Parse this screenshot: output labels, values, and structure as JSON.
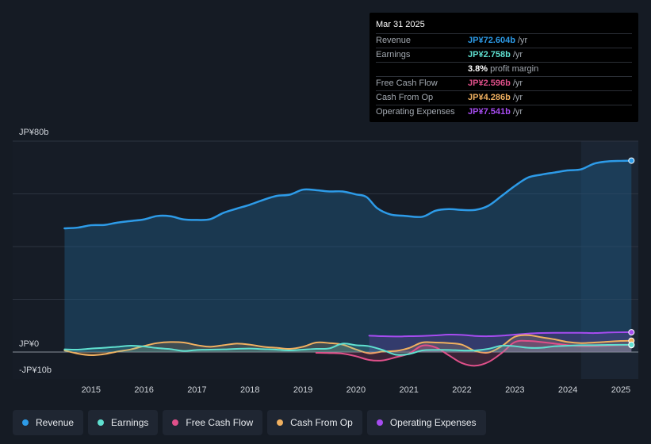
{
  "tooltip": {
    "date": "Mar 31 2025",
    "rows": [
      {
        "label": "Revenue",
        "value": "JP¥72.604b",
        "unit": "/yr",
        "color": "#2d9be8"
      },
      {
        "label": "Earnings",
        "value": "JP¥2.758b",
        "unit": "/yr",
        "color": "#5fe0d0"
      },
      {
        "label": "",
        "value": "3.8%",
        "unit": "profit margin",
        "color": "#ffffff"
      },
      {
        "label": "Free Cash Flow",
        "value": "JP¥2.596b",
        "unit": "/yr",
        "color": "#e0508a"
      },
      {
        "label": "Cash From Op",
        "value": "JP¥4.286b",
        "unit": "/yr",
        "color": "#f0b060"
      },
      {
        "label": "Operating Expenses",
        "value": "JP¥7.541b",
        "unit": "/yr",
        "color": "#a64cf0"
      }
    ]
  },
  "legend": [
    {
      "label": "Revenue",
      "color": "#2d9be8"
    },
    {
      "label": "Earnings",
      "color": "#5fe0d0"
    },
    {
      "label": "Free Cash Flow",
      "color": "#e0508a"
    },
    {
      "label": "Cash From Op",
      "color": "#f0b060"
    },
    {
      "label": "Operating Expenses",
      "color": "#a64cf0"
    }
  ],
  "chart_data": {
    "type": "line",
    "title": "",
    "xlabel": "",
    "ylabel": "",
    "ylim": [
      -10,
      80
    ],
    "y_tick_labels": [
      {
        "value": 80,
        "label": "JP¥80b"
      },
      {
        "value": 0,
        "label": "JP¥0"
      },
      {
        "value": -10,
        "label": "-JP¥10b"
      }
    ],
    "x_tick_labels": [
      {
        "value": 2015,
        "label": "2015"
      },
      {
        "value": 2016,
        "label": "2016"
      },
      {
        "value": 2017,
        "label": "2017"
      },
      {
        "value": 2018,
        "label": "2018"
      },
      {
        "value": 2019,
        "label": "2019"
      },
      {
        "value": 2020,
        "label": "2020"
      },
      {
        "value": 2021,
        "label": "2021"
      },
      {
        "value": 2022,
        "label": "2022"
      },
      {
        "value": 2023,
        "label": "2023"
      },
      {
        "value": 2024,
        "label": "2024"
      },
      {
        "value": 2025,
        "label": "2025"
      }
    ],
    "xlim": [
      2014.0,
      2025.3
    ],
    "forecast_start": 2024.25,
    "series": [
      {
        "name": "Revenue",
        "color": "#2d9be8",
        "fill": true,
        "points": [
          [
            2014.5,
            46.9
          ],
          [
            2014.75,
            47.2
          ],
          [
            2015.0,
            48.1
          ],
          [
            2015.25,
            48.2
          ],
          [
            2015.5,
            49.1
          ],
          [
            2015.75,
            49.7
          ],
          [
            2016.0,
            50.3
          ],
          [
            2016.25,
            51.6
          ],
          [
            2016.5,
            51.5
          ],
          [
            2016.75,
            50.3
          ],
          [
            2017.0,
            50.1
          ],
          [
            2017.25,
            50.4
          ],
          [
            2017.5,
            52.8
          ],
          [
            2017.75,
            54.4
          ],
          [
            2018.0,
            55.9
          ],
          [
            2018.25,
            57.7
          ],
          [
            2018.5,
            59.2
          ],
          [
            2018.75,
            59.7
          ],
          [
            2019.0,
            61.6
          ],
          [
            2019.25,
            61.4
          ],
          [
            2019.5,
            60.9
          ],
          [
            2019.75,
            60.9
          ],
          [
            2020.0,
            59.8
          ],
          [
            2020.2,
            58.8
          ],
          [
            2020.4,
            54.6
          ],
          [
            2020.65,
            52.2
          ],
          [
            2020.9,
            51.7
          ],
          [
            2021.25,
            51.3
          ],
          [
            2021.5,
            53.6
          ],
          [
            2021.75,
            54.2
          ],
          [
            2022.0,
            53.9
          ],
          [
            2022.25,
            53.9
          ],
          [
            2022.5,
            55.5
          ],
          [
            2022.75,
            59.2
          ],
          [
            2023.0,
            63.0
          ],
          [
            2023.25,
            66.2
          ],
          [
            2023.5,
            67.3
          ],
          [
            2023.75,
            68.1
          ],
          [
            2024.0,
            68.9
          ],
          [
            2024.25,
            69.3
          ],
          [
            2024.5,
            71.5
          ],
          [
            2024.75,
            72.3
          ],
          [
            2025.0,
            72.5
          ],
          [
            2025.2,
            72.6
          ]
        ]
      },
      {
        "name": "Operating Expenses",
        "color": "#a64cf0",
        "fill": true,
        "points": [
          [
            2020.25,
            6.2
          ],
          [
            2020.5,
            6.0
          ],
          [
            2020.75,
            5.9
          ],
          [
            2021.0,
            6.0
          ],
          [
            2021.25,
            6.1
          ],
          [
            2021.5,
            6.3
          ],
          [
            2021.75,
            6.6
          ],
          [
            2022.0,
            6.5
          ],
          [
            2022.25,
            6.1
          ],
          [
            2022.5,
            6.0
          ],
          [
            2022.75,
            6.2
          ],
          [
            2023.0,
            6.6
          ],
          [
            2023.25,
            7.0
          ],
          [
            2023.5,
            7.2
          ],
          [
            2023.75,
            7.3
          ],
          [
            2024.0,
            7.3
          ],
          [
            2024.25,
            7.3
          ],
          [
            2024.5,
            7.2
          ],
          [
            2024.75,
            7.4
          ],
          [
            2025.0,
            7.5
          ],
          [
            2025.2,
            7.5
          ]
        ]
      },
      {
        "name": "Cash From Op",
        "color": "#f0b060",
        "fill": true,
        "points": [
          [
            2014.5,
            0.6
          ],
          [
            2014.75,
            -0.6
          ],
          [
            2015.0,
            -1.2
          ],
          [
            2015.25,
            -0.8
          ],
          [
            2015.5,
            0.2
          ],
          [
            2015.75,
            1.0
          ],
          [
            2016.0,
            2.3
          ],
          [
            2016.25,
            3.4
          ],
          [
            2016.5,
            3.8
          ],
          [
            2016.75,
            3.6
          ],
          [
            2017.0,
            2.6
          ],
          [
            2017.25,
            2.0
          ],
          [
            2017.5,
            2.6
          ],
          [
            2017.75,
            3.2
          ],
          [
            2018.0,
            2.8
          ],
          [
            2018.25,
            2.0
          ],
          [
            2018.5,
            1.6
          ],
          [
            2018.75,
            1.2
          ],
          [
            2019.0,
            2.0
          ],
          [
            2019.25,
            3.6
          ],
          [
            2019.5,
            3.4
          ],
          [
            2019.75,
            2.8
          ],
          [
            2020.0,
            1.0
          ],
          [
            2020.25,
            -0.5
          ],
          [
            2020.5,
            0.2
          ],
          [
            2020.75,
            0.4
          ],
          [
            2021.0,
            1.5
          ],
          [
            2021.25,
            3.6
          ],
          [
            2021.5,
            3.6
          ],
          [
            2021.75,
            3.4
          ],
          [
            2022.0,
            2.8
          ],
          [
            2022.25,
            0.4
          ],
          [
            2022.5,
            -0.2
          ],
          [
            2022.75,
            2.2
          ],
          [
            2023.0,
            5.8
          ],
          [
            2023.25,
            6.4
          ],
          [
            2023.5,
            5.6
          ],
          [
            2023.75,
            4.8
          ],
          [
            2024.0,
            3.8
          ],
          [
            2024.25,
            3.4
          ],
          [
            2024.5,
            3.6
          ],
          [
            2024.75,
            3.9
          ],
          [
            2025.0,
            4.2
          ],
          [
            2025.2,
            4.3
          ]
        ]
      },
      {
        "name": "Free Cash Flow",
        "color": "#e0508a",
        "fill": true,
        "points": [
          [
            2019.25,
            -0.3
          ],
          [
            2019.5,
            -0.4
          ],
          [
            2019.75,
            -0.6
          ],
          [
            2020.0,
            -1.6
          ],
          [
            2020.25,
            -3.0
          ],
          [
            2020.5,
            -3.2
          ],
          [
            2020.75,
            -2.0
          ],
          [
            2021.0,
            -0.6
          ],
          [
            2021.25,
            2.4
          ],
          [
            2021.5,
            1.8
          ],
          [
            2021.75,
            -1.2
          ],
          [
            2022.0,
            -4.2
          ],
          [
            2022.25,
            -5.2
          ],
          [
            2022.5,
            -3.8
          ],
          [
            2022.75,
            -0.4
          ],
          [
            2023.0,
            3.8
          ],
          [
            2023.25,
            4.2
          ],
          [
            2023.5,
            3.8
          ],
          [
            2023.75,
            3.2
          ],
          [
            2024.0,
            2.6
          ],
          [
            2024.25,
            2.2
          ],
          [
            2024.5,
            2.2
          ],
          [
            2024.75,
            2.4
          ],
          [
            2025.0,
            2.6
          ],
          [
            2025.2,
            2.6
          ]
        ]
      },
      {
        "name": "Earnings",
        "color": "#5fe0d0",
        "fill": true,
        "points": [
          [
            2014.5,
            1.0
          ],
          [
            2014.75,
            0.9
          ],
          [
            2015.0,
            1.3
          ],
          [
            2015.25,
            1.6
          ],
          [
            2015.5,
            2.0
          ],
          [
            2015.75,
            2.4
          ],
          [
            2016.0,
            2.1
          ],
          [
            2016.25,
            1.5
          ],
          [
            2016.5,
            1.1
          ],
          [
            2016.75,
            0.4
          ],
          [
            2017.0,
            0.8
          ],
          [
            2017.25,
            0.9
          ],
          [
            2017.5,
            1.0
          ],
          [
            2017.75,
            1.2
          ],
          [
            2018.0,
            1.3
          ],
          [
            2018.25,
            1.1
          ],
          [
            2018.5,
            0.9
          ],
          [
            2018.75,
            0.6
          ],
          [
            2019.0,
            0.9
          ],
          [
            2019.25,
            1.2
          ],
          [
            2019.5,
            1.4
          ],
          [
            2019.75,
            3.2
          ],
          [
            2020.0,
            2.6
          ],
          [
            2020.25,
            2.2
          ],
          [
            2020.5,
            0.8
          ],
          [
            2020.75,
            -1.0
          ],
          [
            2021.0,
            -0.8
          ],
          [
            2021.25,
            0.6
          ],
          [
            2021.5,
            0.8
          ],
          [
            2021.75,
            0.8
          ],
          [
            2022.0,
            0.6
          ],
          [
            2022.25,
            0.6
          ],
          [
            2022.5,
            1.2
          ],
          [
            2022.75,
            2.4
          ],
          [
            2023.0,
            2.2
          ],
          [
            2023.25,
            1.6
          ],
          [
            2023.5,
            1.6
          ],
          [
            2023.75,
            2.2
          ],
          [
            2024.0,
            2.4
          ],
          [
            2024.25,
            2.6
          ],
          [
            2024.5,
            2.6
          ],
          [
            2024.75,
            2.7
          ],
          [
            2025.0,
            2.75
          ],
          [
            2025.2,
            2.76
          ]
        ]
      }
    ]
  }
}
